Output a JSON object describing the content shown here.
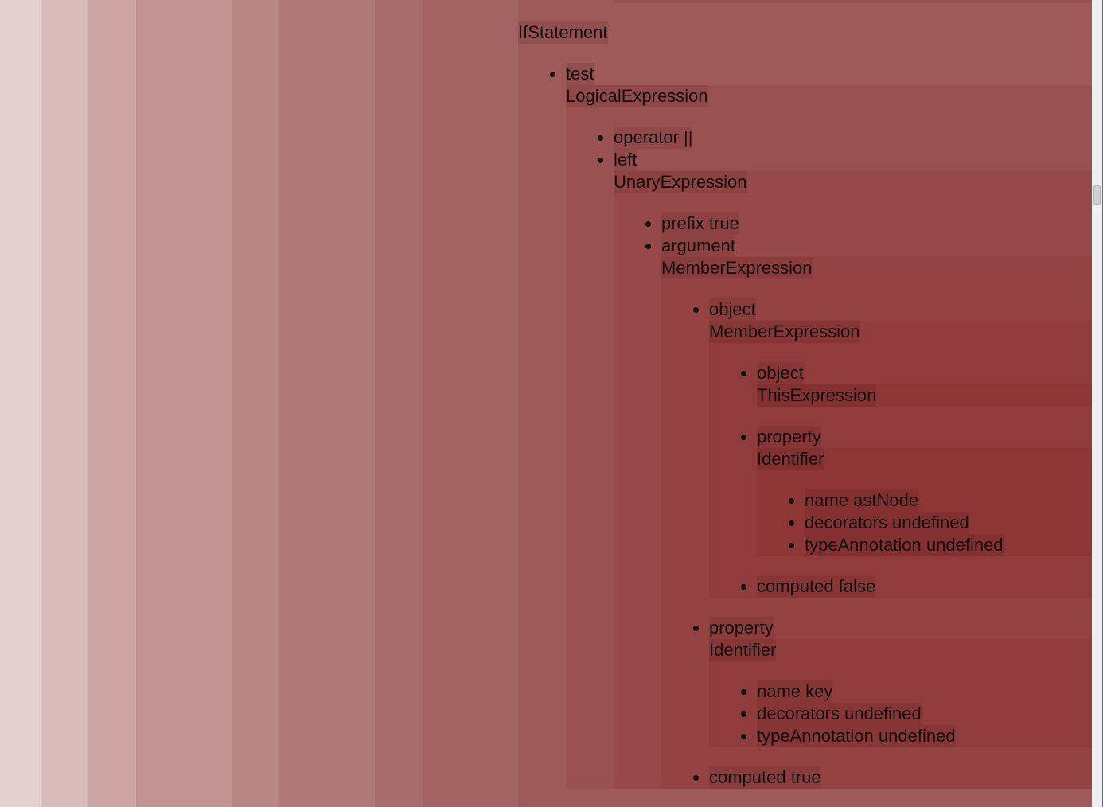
{
  "tree": {
    "type": "IfStatement",
    "props": [
      {
        "key": "test",
        "node": {
          "type": "LogicalExpression",
          "props": [
            {
              "text": "operator ||"
            },
            {
              "key": "left",
              "node": {
                "type": "UnaryExpression",
                "props": [
                  {
                    "text": "prefix true"
                  },
                  {
                    "key": "argument",
                    "node": {
                      "type": "MemberExpression",
                      "props": [
                        {
                          "key": "object",
                          "node": {
                            "type": "MemberExpression",
                            "props": [
                              {
                                "key": "object",
                                "node": {
                                  "type": "ThisExpression",
                                  "props": []
                                }
                              },
                              {
                                "key": "property",
                                "node": {
                                  "type": "Identifier",
                                  "props": [
                                    {
                                      "text": "name astNode"
                                    },
                                    {
                                      "text": "decorators undefined"
                                    },
                                    {
                                      "text": "typeAnnotation undefined"
                                    }
                                  ]
                                }
                              },
                              {
                                "text": "computed false"
                              }
                            ]
                          }
                        },
                        {
                          "key": "property",
                          "node": {
                            "type": "Identifier",
                            "props": [
                              {
                                "text": "name key"
                              },
                              {
                                "text": "decorators undefined"
                              },
                              {
                                "text": "typeAnnotation undefined"
                              }
                            ]
                          }
                        },
                        {
                          "text": "computed true"
                        }
                      ]
                    }
                  }
                ]
              }
            }
          ]
        }
      }
    ]
  }
}
